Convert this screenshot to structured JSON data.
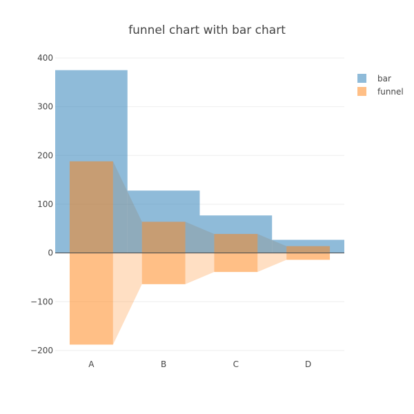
{
  "chart_data": {
    "type": "bar",
    "title": "funnel chart with bar chart",
    "categories": [
      "A",
      "B",
      "C",
      "D"
    ],
    "series": [
      {
        "name": "bar",
        "values": [
          375,
          128,
          77,
          27
        ],
        "color": "#1f77b4"
      },
      {
        "name": "funnel",
        "values": [
          188,
          64,
          39,
          14
        ],
        "color": "#ff7f0e"
      }
    ],
    "ylim": [
      -210,
      400
    ],
    "yticks": [
      400,
      300,
      200,
      100,
      0,
      -100,
      -200
    ],
    "ytick_labels": [
      "400",
      "300",
      "200",
      "100",
      "0",
      "−100",
      "−200"
    ],
    "xlabel": "",
    "ylabel": "",
    "legend": "top-right"
  }
}
